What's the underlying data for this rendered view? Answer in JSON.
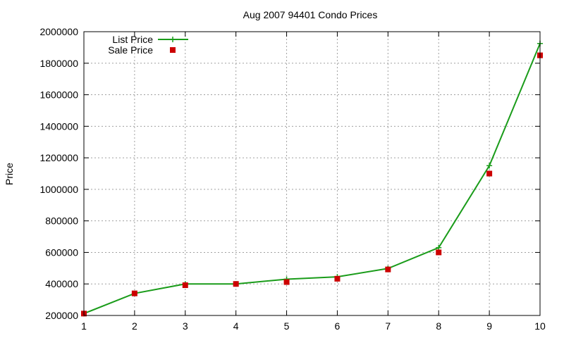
{
  "chart_data": {
    "type": "line",
    "title": "Aug 2007 94401 Condo Prices",
    "xlabel": "",
    "ylabel": "Price",
    "x": [
      1,
      2,
      3,
      4,
      5,
      6,
      7,
      8,
      9,
      10
    ],
    "xlim": [
      1,
      10
    ],
    "ylim": [
      200000,
      2000000
    ],
    "yticks": [
      "200000",
      "400000",
      "600000",
      "800000",
      "1000000",
      "1200000",
      "1400000",
      "1600000",
      "1800000",
      "2000000"
    ],
    "xticks": [
      "1",
      "2",
      "3",
      "4",
      "5",
      "6",
      "7",
      "8",
      "9",
      "10"
    ],
    "grid": true,
    "legend_position": "top-left",
    "series": [
      {
        "name": "List Price",
        "kind": "line+plus",
        "color": "#1a9c1a",
        "values": [
          212000,
          340000,
          400000,
          400000,
          430000,
          445000,
          498000,
          630000,
          1150000,
          1925000
        ]
      },
      {
        "name": "Sale Price",
        "kind": "square",
        "color": "#cc0000",
        "values": [
          212000,
          340000,
          392000,
          400000,
          412000,
          433000,
          492000,
          600000,
          1100000,
          1850000
        ]
      }
    ]
  }
}
